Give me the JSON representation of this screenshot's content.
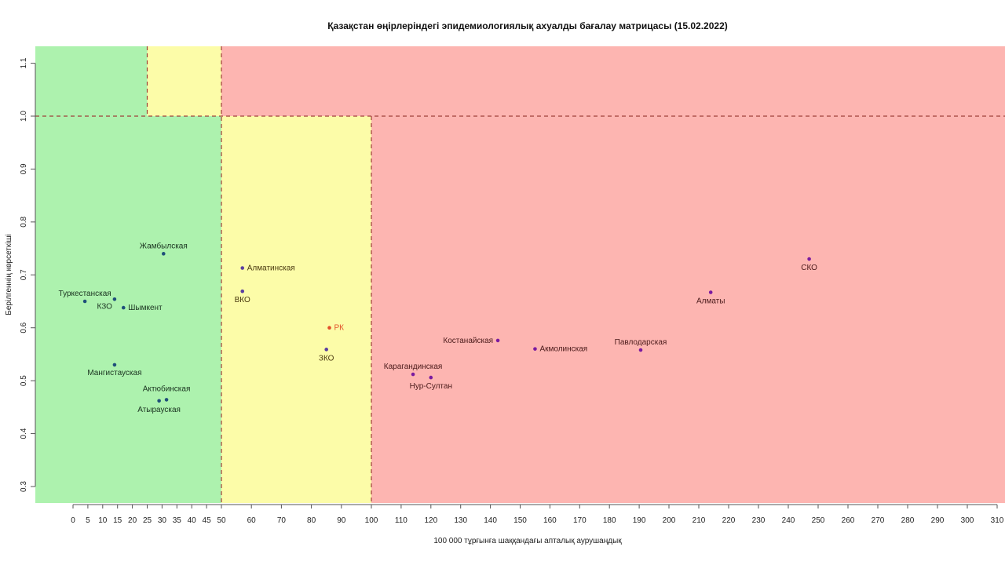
{
  "chart_data": {
    "type": "scatter",
    "title": "Қазақстан өңірлеріндегі эпидемиологиялық ахуалды бағалау матрицасы  (15.02.2022)",
    "xlabel": "100 000 тұрғынға шаққандағы апталық аурушаңдық",
    "ylabel": "Берілгеннің көрсеткіші",
    "xlim": [
      -3,
      312
    ],
    "ylim": [
      0.27,
      1.128
    ],
    "x_ticks": [
      0,
      5,
      10,
      15,
      20,
      25,
      30,
      35,
      40,
      45,
      50,
      60,
      70,
      80,
      90,
      100,
      110,
      120,
      130,
      140,
      150,
      160,
      170,
      180,
      190,
      200,
      210,
      220,
      230,
      240,
      250,
      260,
      270,
      280,
      290,
      300,
      310
    ],
    "y_ticks": [
      0.3,
      0.4,
      0.5,
      0.6,
      0.7,
      0.8,
      0.9,
      1.0,
      1.1
    ],
    "y_tick_labels": [
      "0.3",
      "0.4",
      "0.5",
      "0.6",
      "0.7",
      "0.8",
      "0.9",
      "1.0",
      "1.1"
    ],
    "threshold_lines": {
      "x": [
        50,
        100
      ],
      "y": [
        1.0
      ],
      "x_upper": [
        25
      ]
    },
    "zone_colors": {
      "green": "#adf2ae",
      "yellow": "#fcfca8",
      "red": "#fdb5b1"
    },
    "points": [
      {
        "name": "Жамбылская",
        "x": 30.5,
        "y": 0.74,
        "color": "#1f4f7a",
        "label_color": "#1a3320"
      },
      {
        "name": "Туркестанская",
        "x": 4,
        "y": 0.65,
        "color": "#1f4f7a",
        "label_color": "#1a3320"
      },
      {
        "name": "КЗО",
        "x": 14,
        "y": 0.654,
        "color": "#1f4f7a",
        "label_color": "#1a3320"
      },
      {
        "name": "Шымкент",
        "x": 17,
        "y": 0.638,
        "color": "#1f4f7a",
        "label_color": "#1a3320"
      },
      {
        "name": "Мангистауская",
        "x": 14,
        "y": 0.53,
        "color": "#1f4f7a",
        "label_color": "#1a3320"
      },
      {
        "name": "Актюбинская",
        "x": 31.5,
        "y": 0.464,
        "color": "#1f4f7a",
        "label_color": "#1a3320"
      },
      {
        "name": "Атырауская",
        "x": 29,
        "y": 0.462,
        "color": "#1f4f7a",
        "label_color": "#1a3320"
      },
      {
        "name": "Алматинская",
        "x": 57,
        "y": 0.713,
        "color": "#5a3fa0",
        "label_color": "#4a3a10"
      },
      {
        "name": "ВКО",
        "x": 57,
        "y": 0.669,
        "color": "#5a3fa0",
        "label_color": "#4a3a10"
      },
      {
        "name": "РК",
        "x": 86,
        "y": 0.6,
        "color": "#e2502a",
        "label_color": "#e2502a"
      },
      {
        "name": "ЗКО",
        "x": 85,
        "y": 0.559,
        "color": "#5a3fa0",
        "label_color": "#4a3a10"
      },
      {
        "name": "Костанайская",
        "x": 142.5,
        "y": 0.576,
        "color": "#7a1aa0",
        "label_color": "#4a1a1a"
      },
      {
        "name": "Акмолинская",
        "x": 155,
        "y": 0.56,
        "color": "#7a1aa0",
        "label_color": "#4a1a1a"
      },
      {
        "name": "Карагандинская",
        "x": 114,
        "y": 0.512,
        "color": "#7a1aa0",
        "label_color": "#4a1a1a"
      },
      {
        "name": "Нур-Султан",
        "x": 120,
        "y": 0.506,
        "color": "#7a1aa0",
        "label_color": "#4a1a1a"
      },
      {
        "name": "Павлодарская",
        "x": 190.5,
        "y": 0.558,
        "color": "#7a1aa0",
        "label_color": "#4a1a1a"
      },
      {
        "name": "Алматы",
        "x": 214,
        "y": 0.667,
        "color": "#7a1aa0",
        "label_color": "#4a1a1a"
      },
      {
        "name": "СКО",
        "x": 247,
        "y": 0.73,
        "color": "#7a1aa0",
        "label_color": "#4a1a1a"
      }
    ],
    "grid": false,
    "legend": "none"
  }
}
